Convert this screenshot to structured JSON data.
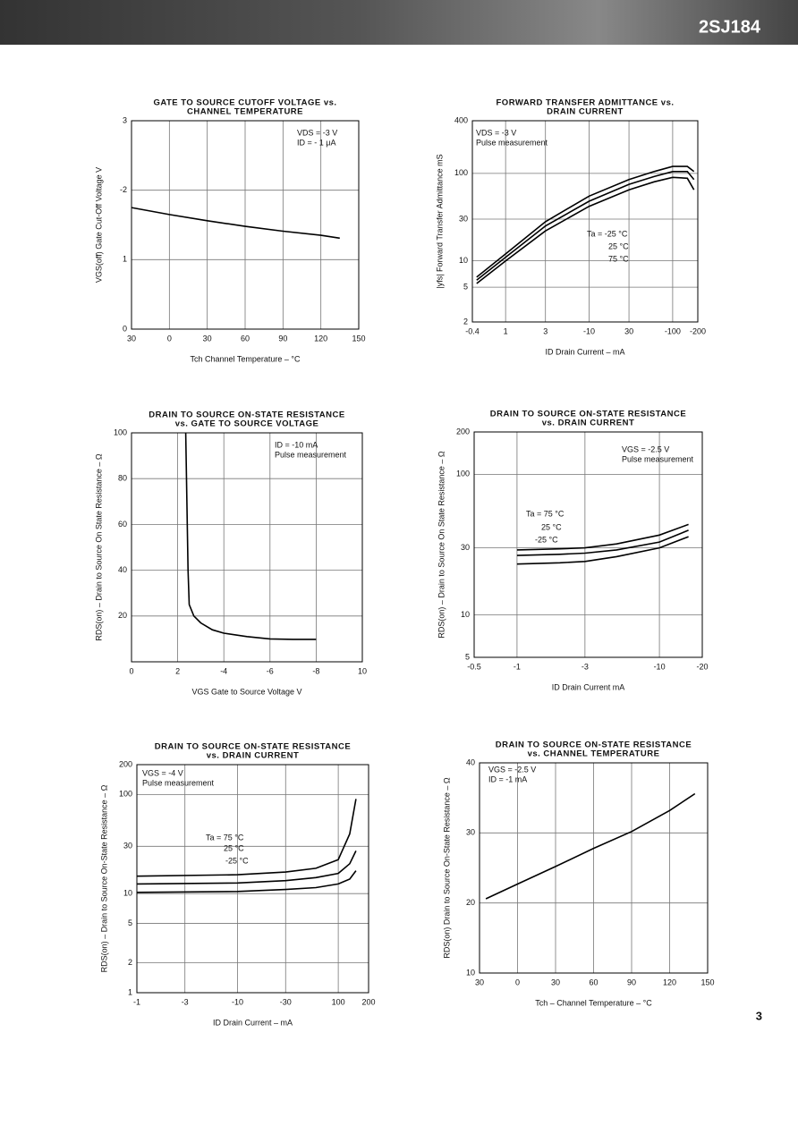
{
  "header": "2SJ184",
  "page_number": "3",
  "chart_data": [
    {
      "type": "line",
      "title": [
        "GATE TO SOURCE CUTOFF VOLTAGE vs.",
        "CHANNEL TEMPERATURE"
      ],
      "xlabel": "Tch   Channel Temperature – °C",
      "ylabel": "VGS(off)   Gate Cut-Off Voltage   V",
      "annotations": [
        "VDS = -3 V",
        "ID = - 1 μA"
      ],
      "xlim": [
        -30,
        150
      ],
      "ylim": [
        0,
        -3
      ],
      "xticks": [
        {
          "value": -30,
          "label": "30"
        },
        0,
        30,
        60,
        90,
        120,
        150
      ],
      "yticks": [
        {
          "value": -3,
          "label": "3"
        },
        -2,
        {
          "value": -1,
          "label": "1"
        },
        0
      ],
      "x": [
        -30,
        0,
        30,
        60,
        90,
        120,
        135
      ],
      "values": [
        -1.75,
        -1.65,
        -1.56,
        -1.48,
        -1.41,
        -1.35,
        -1.31
      ],
      "color": "#000000",
      "grid": true
    },
    {
      "type": "line",
      "title": [
        "FORWARD TRANSFER ADMITTANCE vs.",
        "DRAIN CURRENT"
      ],
      "xlabel": "ID   Drain Current – mA",
      "ylabel": "|yfs|   Forward Transfer Admittance   mS",
      "annotations": [
        "VDS = -3 V",
        "Pulse measurement"
      ],
      "xscale": "log",
      "yscale": "log",
      "xlim": [
        -0.4,
        -200
      ],
      "ylim": [
        2,
        400
      ],
      "xticks": [
        -0.4,
        {
          "value": -1,
          "label": "1"
        },
        {
          "value": -3,
          "label": "3"
        },
        -10,
        {
          "value": -30,
          "label": "30"
        },
        -100,
        -200
      ],
      "yticks": [
        2,
        5,
        10,
        30,
        100,
        400
      ],
      "x": [
        -0.45,
        -1,
        -3,
        -10,
        -30,
        -60,
        -100,
        -150,
        -180
      ],
      "series": [
        {
          "name": "Ta = -25 °C",
          "color": "#000000",
          "values": [
            6.5,
            12,
            28,
            55,
            85,
            105,
            120,
            120,
            105
          ]
        },
        {
          "name": "25 °C",
          "color": "#000000",
          "values": [
            6,
            11,
            25,
            48,
            75,
            92,
            105,
            105,
            85
          ]
        },
        {
          "name": "75 °C",
          "color": "#000000",
          "values": [
            5.5,
            10,
            22,
            42,
            65,
            80,
            90,
            88,
            65
          ]
        }
      ],
      "grid": true
    },
    {
      "type": "line",
      "title": [
        "DRAIN TO SOURCE ON-STATE RESISTANCE",
        "vs. GATE TO SOURCE VOLTAGE"
      ],
      "xlabel": "VGS   Gate to Source Voltage   V",
      "ylabel": "RDS(on) – Drain to Source On State Resistance – Ω",
      "annotations": [
        "ID = -10 mA",
        "Pulse measurement"
      ],
      "xlim": [
        0,
        -10
      ],
      "ylim": [
        0,
        100
      ],
      "xticks": [
        0,
        {
          "value": -2,
          "label": "2"
        },
        -4,
        -6,
        -8,
        {
          "value": -10,
          "label": "10"
        }
      ],
      "yticks": [
        20,
        40,
        60,
        80,
        100
      ],
      "x": [
        -2.35,
        -2.4,
        -2.45,
        -2.5,
        -2.7,
        -3,
        -3.5,
        -4,
        -5,
        -6,
        -7,
        -8
      ],
      "values": [
        100,
        70,
        40,
        25,
        20,
        17,
        14,
        12.5,
        11,
        10,
        9.8,
        9.8
      ],
      "color": "#000000",
      "grid": true
    },
    {
      "type": "line",
      "title": [
        "DRAIN TO SOURCE ON-STATE RESISTANCE",
        "vs. DRAIN CURRENT"
      ],
      "xlabel": "ID   Drain Current   mA",
      "ylabel": "RDS(on) – Drain to Source On State Resistance – Ω",
      "annotations": [
        "VGS = -2.5 V",
        "Pulse measurement"
      ],
      "xscale": "log",
      "yscale": "log",
      "xlim": [
        -0.5,
        -20
      ],
      "ylim": [
        5,
        200
      ],
      "xticks": [
        -0.5,
        -1,
        -3,
        -10,
        -20
      ],
      "yticks": [
        5,
        10,
        30,
        100,
        200
      ],
      "x": [
        -1,
        -2,
        -3,
        -5,
        -10,
        -16
      ],
      "series": [
        {
          "name": "Ta = 75 °C",
          "color": "#000000",
          "values": [
            29,
            29.5,
            30,
            32,
            37,
            44
          ]
        },
        {
          "name": "25 °C",
          "color": "#000000",
          "values": [
            26.5,
            27,
            27.5,
            29,
            33,
            40
          ]
        },
        {
          "name": "-25 °C",
          "color": "#000000",
          "values": [
            23,
            23.5,
            24,
            26,
            30,
            36
          ]
        }
      ],
      "grid": true
    },
    {
      "type": "line",
      "title": [
        "DRAIN TO SOURCE ON-STATE RESISTANCE",
        "vs. DRAIN CURRENT"
      ],
      "xlabel": "ID   Drain Current – mA",
      "ylabel": "RDS(on) – Drain to Source On-State Resistance – Ω",
      "annotations": [
        "VGS = -4 V",
        "Pulse measurement"
      ],
      "xscale": "log",
      "yscale": "log",
      "xlim": [
        -1,
        -200
      ],
      "ylim": [
        1,
        200
      ],
      "xticks": [
        -1,
        -3,
        -10,
        -30,
        {
          "value": -100,
          "label": "100"
        },
        {
          "value": -200,
          "label": "200"
        }
      ],
      "yticks": [
        1,
        2,
        5,
        10,
        30,
        100,
        200
      ],
      "x": [
        -1,
        -10,
        -30,
        -60,
        -100,
        -130,
        -150
      ],
      "series": [
        {
          "name": "Ta = 75 °C",
          "color": "#000000",
          "values": [
            15,
            15.5,
            16.5,
            18,
            22,
            40,
            90
          ]
        },
        {
          "name": "25 °C",
          "color": "#000000",
          "values": [
            12.5,
            12.8,
            13.5,
            14.5,
            16,
            20,
            27
          ]
        },
        {
          "name": "-25 °C",
          "color": "#000000",
          "values": [
            10.3,
            10.5,
            11,
            11.5,
            12.5,
            14,
            17
          ]
        }
      ],
      "grid": true
    },
    {
      "type": "line",
      "title": [
        "DRAIN TO SOURCE ON-STATE RESISTANCE",
        "vs. CHANNEL TEMPERATURE"
      ],
      "xlabel": "Tch – Channel Temperature – °C",
      "ylabel": "RDS(on)   Drain to Source On-State Resistance – Ω",
      "annotations": [
        "VGS = -2.5 V",
        "ID = -1 mA"
      ],
      "xlim": [
        -30,
        150
      ],
      "ylim": [
        10,
        40
      ],
      "xticks": [
        {
          "value": -30,
          "label": "30"
        },
        0,
        30,
        60,
        90,
        120,
        150
      ],
      "yticks": [
        10,
        20,
        30,
        40
      ],
      "x": [
        -25,
        0,
        30,
        60,
        90,
        120,
        140
      ],
      "values": [
        20.6,
        22.7,
        25.2,
        27.8,
        30.2,
        33.2,
        35.6
      ],
      "color": "#000000",
      "grid": true
    }
  ]
}
